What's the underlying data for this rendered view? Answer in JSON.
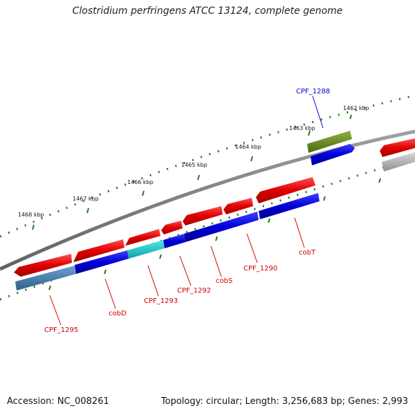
{
  "title": "Clostridium perfringens ATCC 13124, complete genome",
  "footer": {
    "accession": "Accession: NC_008261",
    "summary": "Topology: circular; Length: 3,256,683 bp; Genes: 2,993"
  },
  "ticks": {
    "labels": [
      "1462 kbp",
      "1463 kbp",
      "1464 kbp",
      "1465 kbp",
      "1466 kbp",
      "1467 kbp",
      "1468 kbp"
    ]
  },
  "genes": {
    "cpf1288": "CPF_1288",
    "cpf1290": "CPF_1290",
    "cpf1292": "CPF_1292",
    "cpf1293": "CPF_1293",
    "cpf1295": "CPF_1295",
    "cobT": "cobT",
    "cobS": "cobS",
    "cobD": "cobD"
  },
  "colors": {
    "backbone": "#808080",
    "tick": "#1e7a1e",
    "forward_gene": "#e00000",
    "reverse_gene": "#0000d0",
    "label_red": "#cc0000",
    "label_blue": "#0000cc",
    "olive_gene": "#6b8e23",
    "cyan_gene": "#20c0c0",
    "steel_gene": "#4682b4",
    "gray_gene": "#b0b0b0"
  }
}
